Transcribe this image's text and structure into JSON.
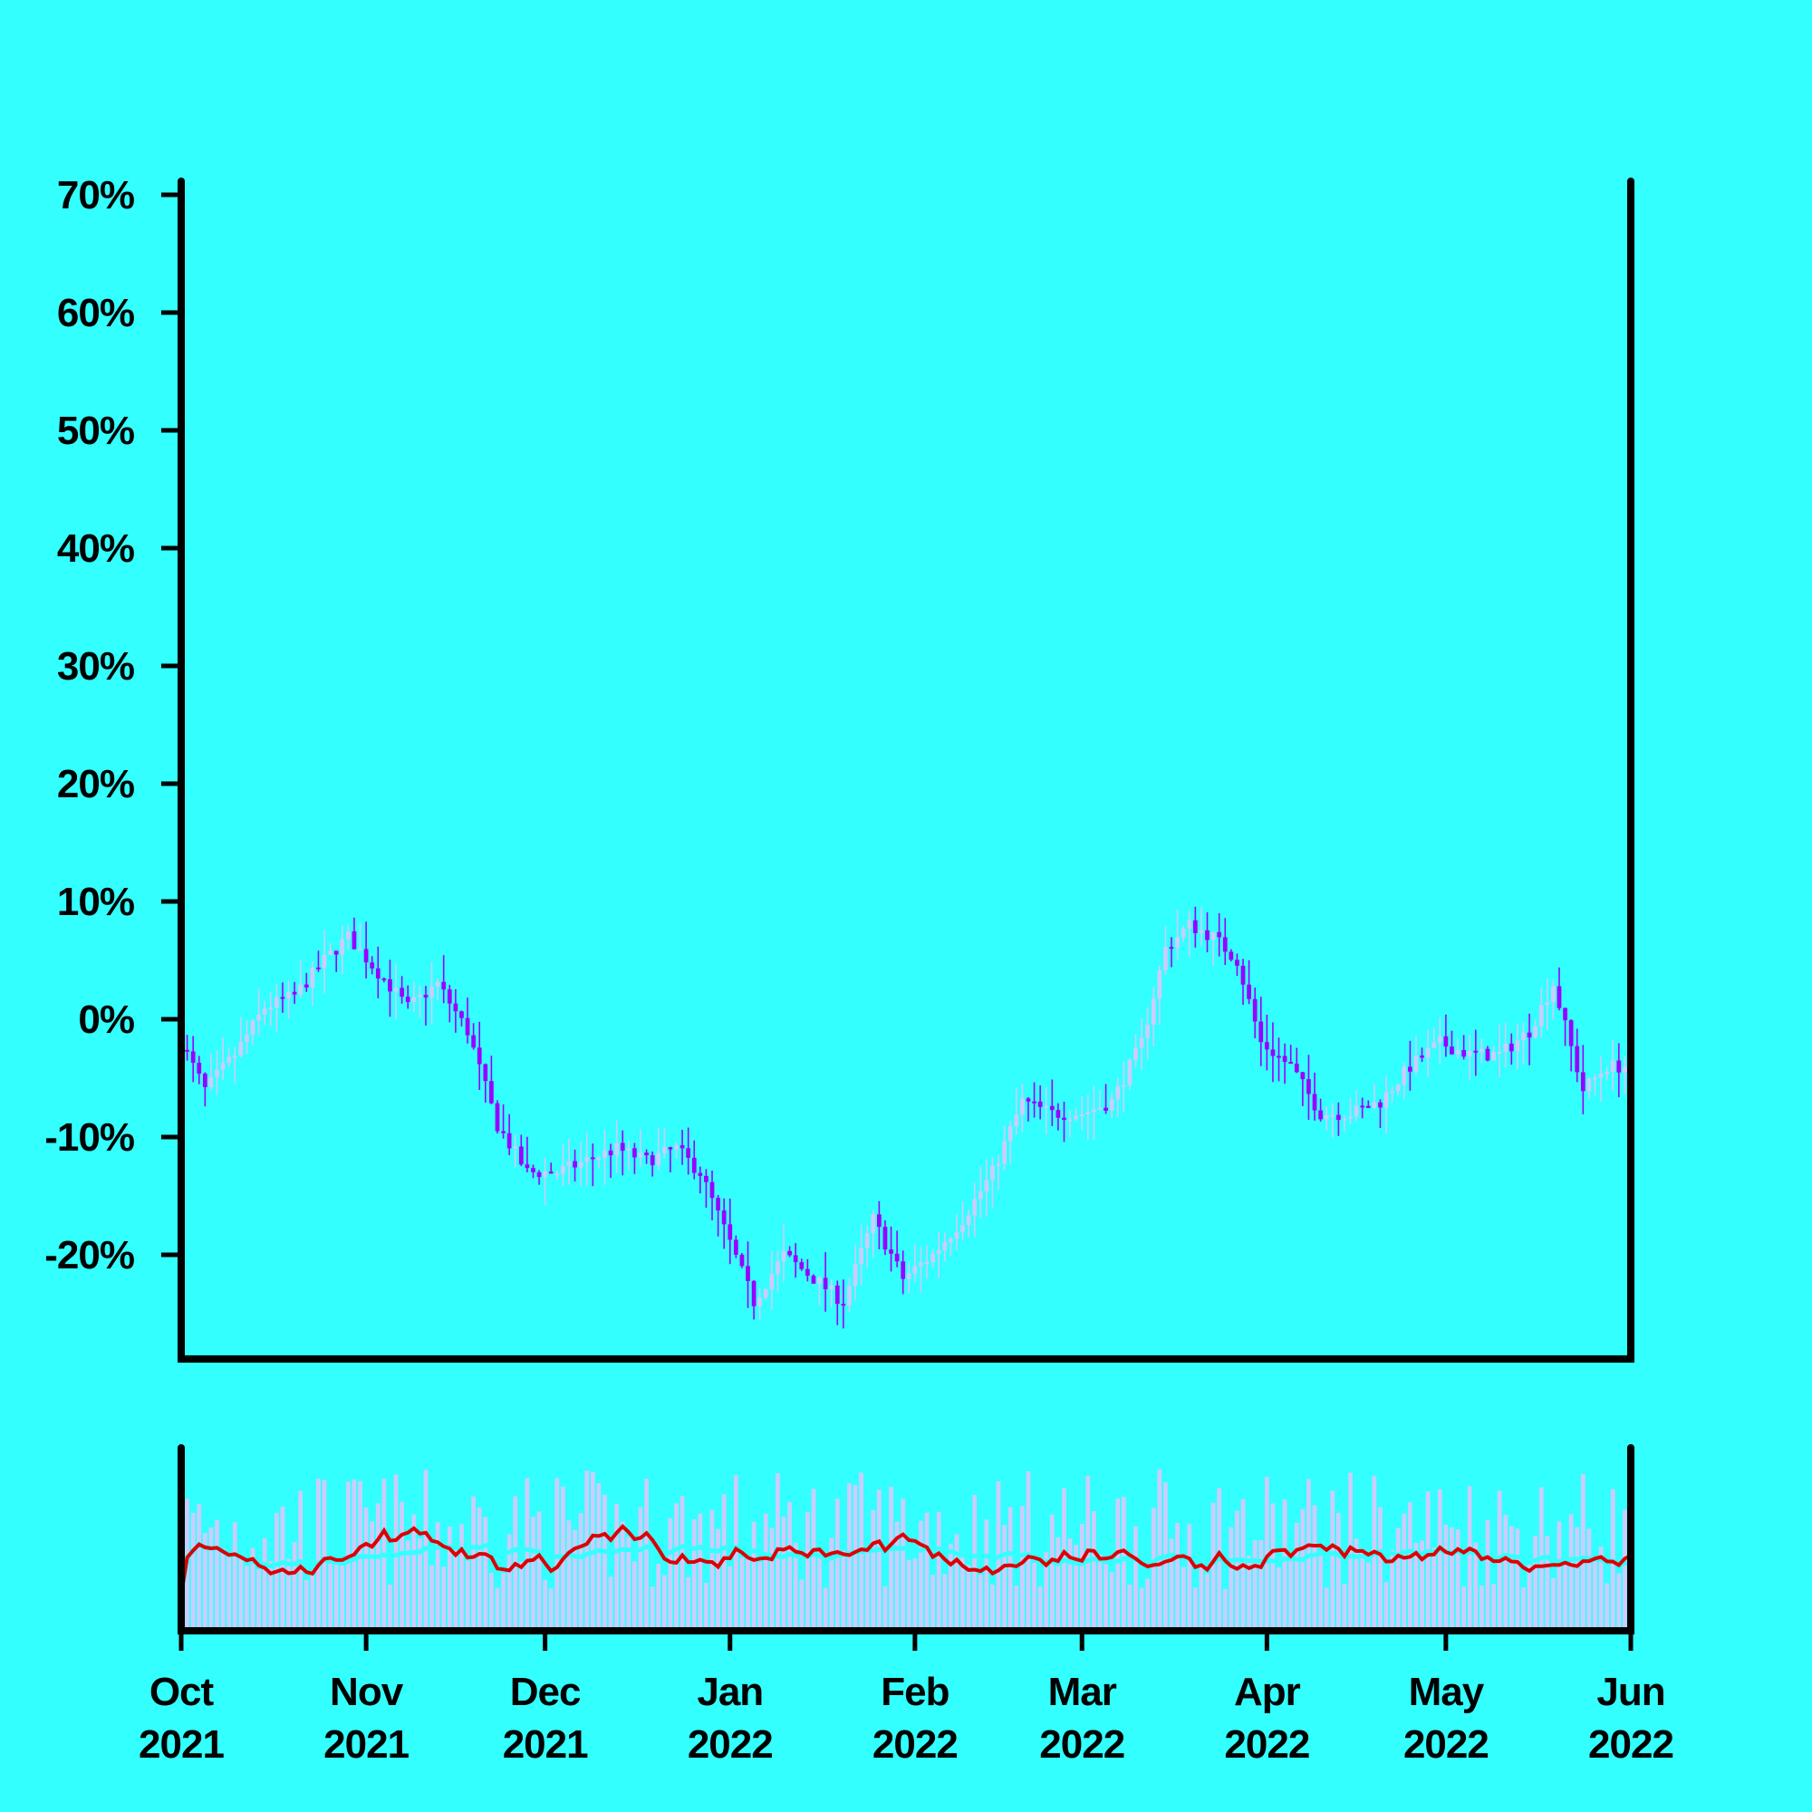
{
  "colors": {
    "background": "#33ffff",
    "frame": "#000000",
    "candle_wick": "#9900ff",
    "candle_up": "#ccccff",
    "candle_down": "#9900ff",
    "volume_bar": "#ccccff",
    "ma_fast": "#dd0000",
    "ma_slow": "#33ffff"
  },
  "chart_data": [
    {
      "type": "candlestick",
      "title": "",
      "ylabel": "",
      "ylim": [
        -29,
        71
      ],
      "y_ticks": [
        -20,
        -10,
        0,
        10,
        20,
        30,
        40,
        50,
        60,
        70
      ],
      "y_tick_labels": [
        "-20%",
        "-10%",
        "0%",
        "10%",
        "20%",
        "30%",
        "40%",
        "50%",
        "60%",
        "70%"
      ],
      "x_range": [
        "2021-10-01",
        "2022-06-01"
      ],
      "grid": false,
      "series": [
        {
          "value_unit": "%",
          "close_path": [
            [
              "2021-10-01",
              -2
            ],
            [
              "2021-10-05",
              -6
            ],
            [
              "2021-10-10",
              -3
            ],
            [
              "2021-10-15",
              1
            ],
            [
              "2021-10-20",
              2
            ],
            [
              "2021-10-25",
              5
            ],
            [
              "2021-10-29",
              7
            ],
            [
              "2021-11-03",
              4
            ],
            [
              "2021-11-08",
              1
            ],
            [
              "2021-11-13",
              3
            ],
            [
              "2021-11-18",
              -1
            ],
            [
              "2021-11-23",
              -9
            ],
            [
              "2021-11-28",
              -13
            ],
            [
              "2021-12-03",
              -13
            ],
            [
              "2021-12-08",
              -12
            ],
            [
              "2021-12-13",
              -11
            ],
            [
              "2021-12-18",
              -12
            ],
            [
              "2021-12-23",
              -11
            ],
            [
              "2021-12-27",
              -13
            ],
            [
              "2022-01-01",
              -19
            ],
            [
              "2022-01-05",
              -24
            ],
            [
              "2022-01-10",
              -20
            ],
            [
              "2022-01-15",
              -22
            ],
            [
              "2022-01-20",
              -24
            ],
            [
              "2022-01-25",
              -17
            ],
            [
              "2022-01-30",
              -22
            ],
            [
              "2022-02-04",
              -20
            ],
            [
              "2022-02-09",
              -17
            ],
            [
              "2022-02-14",
              -13
            ],
            [
              "2022-02-19",
              -7
            ],
            [
              "2022-02-24",
              -8
            ],
            [
              "2022-03-01",
              -8
            ],
            [
              "2022-03-06",
              -7
            ],
            [
              "2022-03-11",
              -2
            ],
            [
              "2022-03-15",
              6
            ],
            [
              "2022-03-19",
              8
            ],
            [
              "2022-03-23",
              7
            ],
            [
              "2022-03-27",
              5
            ],
            [
              "2022-03-31",
              -2
            ],
            [
              "2022-04-05",
              -4
            ],
            [
              "2022-04-10",
              -8
            ],
            [
              "2022-04-15",
              -8
            ],
            [
              "2022-04-20",
              -7
            ],
            [
              "2022-04-25",
              -4
            ],
            [
              "2022-04-30",
              -2
            ],
            [
              "2022-05-05",
              -3
            ],
            [
              "2022-05-10",
              -3
            ],
            [
              "2022-05-15",
              -1
            ],
            [
              "2022-05-19",
              3
            ],
            [
              "2022-05-24",
              -6
            ],
            [
              "2022-05-28",
              -4
            ],
            [
              "2022-06-01",
              -4
            ]
          ],
          "daily_range_pct": 4
        }
      ]
    },
    {
      "type": "bar",
      "panel": "volume",
      "x_range": [
        "2021-10-01",
        "2022-06-01"
      ],
      "y_axis_labels": false,
      "series": [
        {
          "name": "",
          "kind": "volume"
        },
        {
          "name": "",
          "kind": "moving-average-fast",
          "color": "#dd0000"
        },
        {
          "name": "",
          "kind": "moving-average-slow",
          "color": "#33ffff"
        }
      ]
    }
  ],
  "x_ticks": [
    {
      "date": "2021-10-01",
      "month": "Oct",
      "year": "2021"
    },
    {
      "date": "2021-11-01",
      "month": "Nov",
      "year": "2021"
    },
    {
      "date": "2021-12-01",
      "month": "Dec",
      "year": "2021"
    },
    {
      "date": "2022-01-01",
      "month": "Jan",
      "year": "2022"
    },
    {
      "date": "2022-02-01",
      "month": "Feb",
      "year": "2022"
    },
    {
      "date": "2022-03-01",
      "month": "Mar",
      "year": "2022"
    },
    {
      "date": "2022-04-01",
      "month": "Apr",
      "year": "2022"
    },
    {
      "date": "2022-05-01",
      "month": "May",
      "year": "2022"
    },
    {
      "date": "2022-06-01",
      "month": "Jun",
      "year": "2022"
    }
  ]
}
